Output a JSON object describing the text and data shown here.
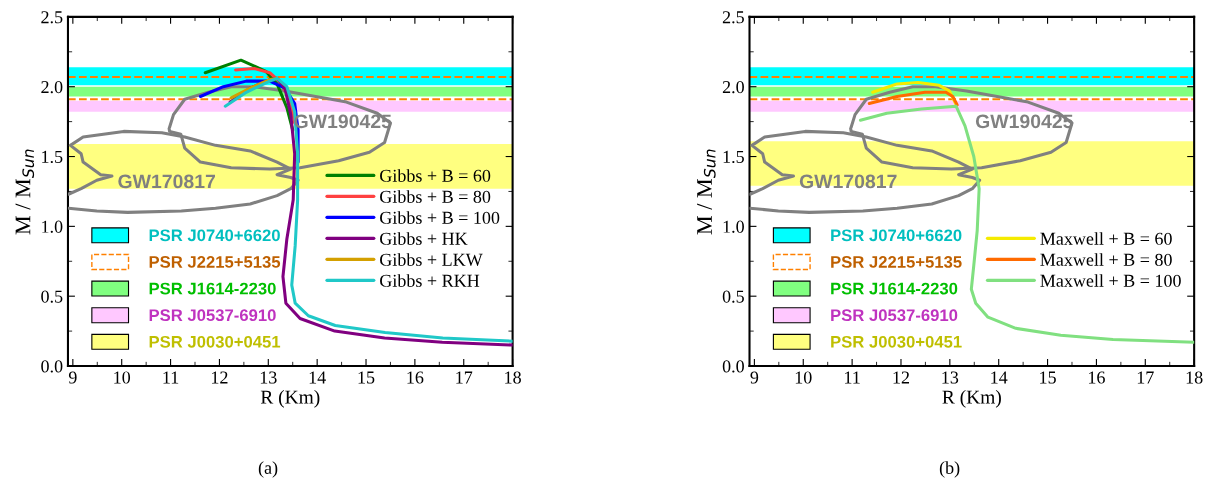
{
  "chart_data": [
    {
      "type": "line",
      "xlabel": "R (Km)",
      "ylabel": "M / M$_{Sun}$",
      "xlim": [
        8.9,
        18
      ],
      "ylim": [
        0,
        2.5
      ],
      "xticks": [
        9,
        10,
        11,
        12,
        13,
        14,
        15,
        16,
        17,
        18
      ],
      "yticks": [
        {
          "value": 0,
          "label": "0.0"
        },
        0.5,
        {
          "value": 1,
          "label": "1.0"
        },
        1.5,
        {
          "value": 2,
          "label": "2.0"
        },
        2.5
      ],
      "legend": "lower right",
      "line_style": "solid",
      "bands": [
        {
          "axis": "y",
          "from": 2.01,
          "to": 2.14,
          "label": "PSR J0740+6620",
          "color": "#00ffff"
        },
        {
          "axis": "y",
          "from": 1.93,
          "to": 2.0,
          "label": "PSR J1614-2230",
          "color": "#80ff80"
        },
        {
          "axis": "y",
          "from": 1.82,
          "to": 1.9,
          "label": "PSR J0537-6910",
          "color": "#ffc8ff"
        },
        {
          "axis": "y",
          "from": 1.27,
          "to": 1.59,
          "label": "PSR J0030+0451",
          "color": "#ffff80"
        }
      ],
      "ref_lines": [
        {
          "axis": "y",
          "value": 2.07,
          "label": "PSR J2215+5135",
          "color": "#ff8000",
          "line_style": "dashed"
        },
        {
          "axis": "y",
          "value": 1.91,
          "color": "#ff8000",
          "line_style": "dashed"
        }
      ],
      "series": [
        {
          "color": "#808080",
          "x": [
            8.91,
            9.17,
            9.49,
            9.8,
            9.57,
            9.21,
            9.17,
            8.95,
            9.21,
            10.04,
            10.82,
            11.29,
            11.92,
            12.63,
            13.18,
            13.46,
            13.18,
            13.46,
            13.61,
            13.46,
            13.18,
            12.63,
            11.92,
            11.22,
            10.12,
            9.49,
            8.91
          ],
          "values": [
            1.23,
            1.27,
            1.33,
            1.36,
            1.37,
            1.46,
            1.52,
            1.58,
            1.64,
            1.68,
            1.67,
            1.64,
            1.58,
            1.54,
            1.46,
            1.41,
            1.37,
            1.35,
            1.33,
            1.27,
            1.22,
            1.16,
            1.13,
            1.11,
            1.1,
            1.11,
            1.13
          ]
        },
        {
          "color": "#808080",
          "x": [
            10.98,
            11.06,
            11.29,
            11.77,
            12.24,
            12.71,
            13.34,
            13.97,
            14.6,
            15.23,
            15.5,
            15.38,
            15.07,
            14.44,
            13.65,
            13.03,
            12.24,
            11.61,
            11.29,
            11.21,
            10.98,
            10.97
          ],
          "values": [
            1.71,
            1.8,
            1.91,
            1.96,
            2.0,
            2.0,
            1.97,
            1.93,
            1.89,
            1.81,
            1.74,
            1.6,
            1.53,
            1.47,
            1.42,
            1.41,
            1.42,
            1.46,
            1.56,
            1.66,
            1.68,
            1.7
          ]
        },
        {
          "name": "Gibbs + B = 60",
          "color": "#008000",
          "x": [
            11.71,
            12.44,
            12.95,
            13.18,
            13.38,
            13.5
          ],
          "values": [
            2.1,
            2.19,
            2.11,
            2.02,
            1.85,
            1.69
          ]
        },
        {
          "name": "Gibbs + B = 80",
          "color": "#ff4040",
          "x": [
            12.33,
            12.71,
            13.03,
            13.22,
            13.42,
            13.54
          ],
          "values": [
            2.12,
            2.13,
            2.1,
            2.04,
            1.93,
            1.74
          ]
        },
        {
          "name": "Gibbs + B = 100",
          "color": "#0000ff",
          "x": [
            11.61,
            12.08,
            12.55,
            13.03,
            13.34,
            13.54,
            13.61,
            13.61
          ],
          "values": [
            1.93,
            2.0,
            2.04,
            2.04,
            1.99,
            1.88,
            1.69,
            1.46
          ]
        },
        {
          "name": "Gibbs + HK",
          "color": "#800080",
          "x": [
            12.22,
            12.63,
            13.03,
            13.18,
            13.34,
            13.46,
            13.54,
            13.51,
            13.38,
            13.3,
            13.36,
            13.65,
            14.36,
            15.38,
            16.56,
            18.0
          ],
          "values": [
            1.89,
            1.99,
            2.05,
            2.06,
            1.99,
            1.8,
            1.52,
            1.19,
            0.91,
            0.64,
            0.45,
            0.34,
            0.25,
            0.2,
            0.17,
            0.15
          ]
        },
        {
          "name": "Gibbs + LKW",
          "color": "#d4a000",
          "x": [
            12.24,
            12.63,
            13.03,
            13.18
          ],
          "values": [
            1.92,
            1.99,
            2.05,
            2.06
          ]
        },
        {
          "name": "Gibbs + RKH",
          "color": "#20c8c8",
          "x": [
            12.12,
            12.55,
            13.03,
            13.18,
            13.38,
            13.54,
            13.6,
            13.6,
            13.55,
            13.48,
            13.55,
            13.82,
            14.37,
            15.39,
            16.57,
            18.0
          ],
          "values": [
            1.86,
            1.96,
            2.04,
            2.06,
            2.0,
            1.82,
            1.52,
            1.19,
            0.86,
            0.58,
            0.45,
            0.36,
            0.29,
            0.24,
            0.2,
            0.178
          ]
        }
      ],
      "annotations": [
        "GW170817",
        "GW190425",
        "(a)"
      ]
    },
    {
      "type": "line",
      "xlabel": "R (Km)",
      "ylabel": "M / M$_{Sun}$",
      "xlim": [
        8.9,
        18
      ],
      "ylim": [
        0,
        2.5
      ],
      "xticks": [
        9,
        10,
        11,
        12,
        13,
        14,
        15,
        16,
        17,
        18
      ],
      "yticks": [
        {
          "value": 0,
          "label": "0.0"
        },
        0.5,
        {
          "value": 1,
          "label": "1.0"
        },
        1.5,
        {
          "value": 2,
          "label": "2.0"
        },
        2.5
      ],
      "legend": "lower right",
      "line_style": "solid",
      "bands": [
        {
          "axis": "y",
          "from": 2.01,
          "to": 2.14,
          "label": "PSR J0740+6620",
          "color": "#00ffff"
        },
        {
          "axis": "y",
          "from": 1.93,
          "to": 2.0,
          "label": "PSR J1614-2230",
          "color": "#80ff80"
        },
        {
          "axis": "y",
          "from": 1.82,
          "to": 1.9,
          "label": "PSR J0537-6910",
          "color": "#ffc8ff"
        },
        {
          "axis": "y",
          "from": 1.29,
          "to": 1.61,
          "label": "PSR J0030+0451",
          "color": "#ffff80"
        }
      ],
      "ref_lines": [
        {
          "axis": "y",
          "value": 2.07,
          "label": "PSR J2215+5135",
          "color": "#ff8000",
          "line_style": "dashed"
        },
        {
          "axis": "y",
          "value": 1.91,
          "color": "#ff8000",
          "line_style": "dashed"
        }
      ],
      "series": [
        {
          "color": "#808080",
          "x": [
            8.91,
            9.17,
            9.49,
            9.8,
            9.57,
            9.21,
            9.17,
            8.95,
            9.21,
            10.04,
            10.82,
            11.29,
            11.92,
            12.63,
            13.18,
            13.46,
            13.18,
            13.46,
            13.61,
            13.46,
            13.18,
            12.63,
            11.92,
            11.22,
            10.12,
            9.49,
            8.91
          ],
          "values": [
            1.23,
            1.27,
            1.33,
            1.36,
            1.37,
            1.46,
            1.52,
            1.58,
            1.64,
            1.68,
            1.67,
            1.64,
            1.58,
            1.54,
            1.46,
            1.41,
            1.37,
            1.35,
            1.33,
            1.27,
            1.22,
            1.16,
            1.13,
            1.11,
            1.1,
            1.11,
            1.13
          ]
        },
        {
          "color": "#808080",
          "x": [
            10.98,
            11.06,
            11.29,
            11.77,
            12.24,
            12.71,
            13.34,
            13.97,
            14.6,
            15.23,
            15.5,
            15.38,
            15.07,
            14.44,
            13.65,
            13.03,
            12.24,
            11.61,
            11.29,
            11.21,
            10.98,
            10.97
          ],
          "values": [
            1.71,
            1.8,
            1.91,
            1.96,
            2.0,
            2.0,
            1.97,
            1.93,
            1.89,
            1.81,
            1.74,
            1.6,
            1.53,
            1.47,
            1.42,
            1.41,
            1.42,
            1.46,
            1.56,
            1.66,
            1.68,
            1.7
          ]
        },
        {
          "name": "Maxwell + B = 60",
          "color": "#f5eb00",
          "x": [
            11.42,
            11.92,
            12.35,
            12.78,
            12.99,
            13.13
          ],
          "values": [
            1.96,
            2.02,
            2.03,
            2.01,
            1.97,
            1.87
          ]
        },
        {
          "name": "Maxwell + B = 80",
          "color": "#ff6a00",
          "x": [
            11.35,
            11.92,
            12.49,
            12.92,
            13.06,
            13.15
          ],
          "values": [
            1.88,
            1.93,
            1.96,
            1.96,
            1.93,
            1.87
          ]
        },
        {
          "name": "Maxwell + B = 100",
          "color": "#80e080",
          "x": [
            11.17,
            11.71,
            12.42,
            13.13,
            13.31,
            13.49,
            13.6,
            13.56,
            13.49,
            13.44,
            13.53,
            13.78,
            14.35,
            15.27,
            16.34,
            18.0
          ],
          "values": [
            1.76,
            1.81,
            1.84,
            1.86,
            1.72,
            1.5,
            1.27,
            0.97,
            0.72,
            0.55,
            0.45,
            0.35,
            0.27,
            0.22,
            0.19,
            0.17
          ]
        }
      ],
      "annotations": [
        "GW170817",
        "GW190425",
        "(b)"
      ]
    }
  ]
}
